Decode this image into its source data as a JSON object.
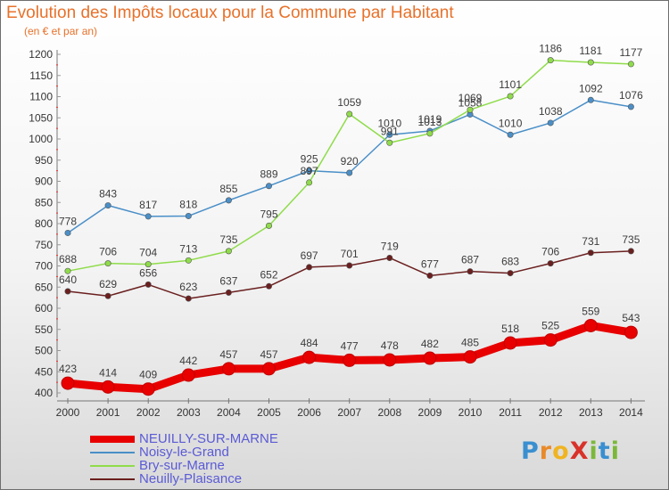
{
  "title": "Evolution des Impôts locaux pour la Commune par Habitant",
  "subtitle": "(en € et par an)",
  "logo_text": "ProXiti",
  "chart_data": {
    "type": "line",
    "x": [
      2000,
      2001,
      2002,
      2003,
      2004,
      2005,
      2006,
      2007,
      2008,
      2009,
      2010,
      2011,
      2012,
      2013,
      2014
    ],
    "ylim": [
      400,
      1200
    ],
    "yticks": [
      400,
      450,
      500,
      550,
      600,
      650,
      700,
      750,
      800,
      850,
      900,
      950,
      1000,
      1050,
      1100,
      1150,
      1200
    ],
    "grid": false,
    "legend_position": "bottom-left",
    "series": [
      {
        "name": "NEUILLY-SUR-MARNE",
        "color": "#e80000",
        "values": [
          423,
          414,
          409,
          442,
          457,
          457,
          484,
          477,
          478,
          482,
          485,
          518,
          525,
          559,
          543
        ]
      },
      {
        "name": "Noisy-le-Grand",
        "color": "#4a8fc8",
        "values": [
          778,
          843,
          817,
          818,
          855,
          889,
          925,
          920,
          1010,
          1019,
          1058,
          1010,
          1038,
          1092,
          1076
        ]
      },
      {
        "name": "Bry-sur-Marne",
        "color": "#8fdc4a",
        "values": [
          688,
          706,
          704,
          713,
          735,
          795,
          897,
          1059,
          991,
          1013,
          1069,
          1101,
          1186,
          1181,
          1177
        ]
      },
      {
        "name": "Neuilly-Plaisance",
        "color": "#6b1f1f",
        "values": [
          640,
          629,
          656,
          623,
          637,
          652,
          697,
          701,
          719,
          677,
          687,
          683,
          706,
          731,
          735
        ]
      }
    ]
  }
}
